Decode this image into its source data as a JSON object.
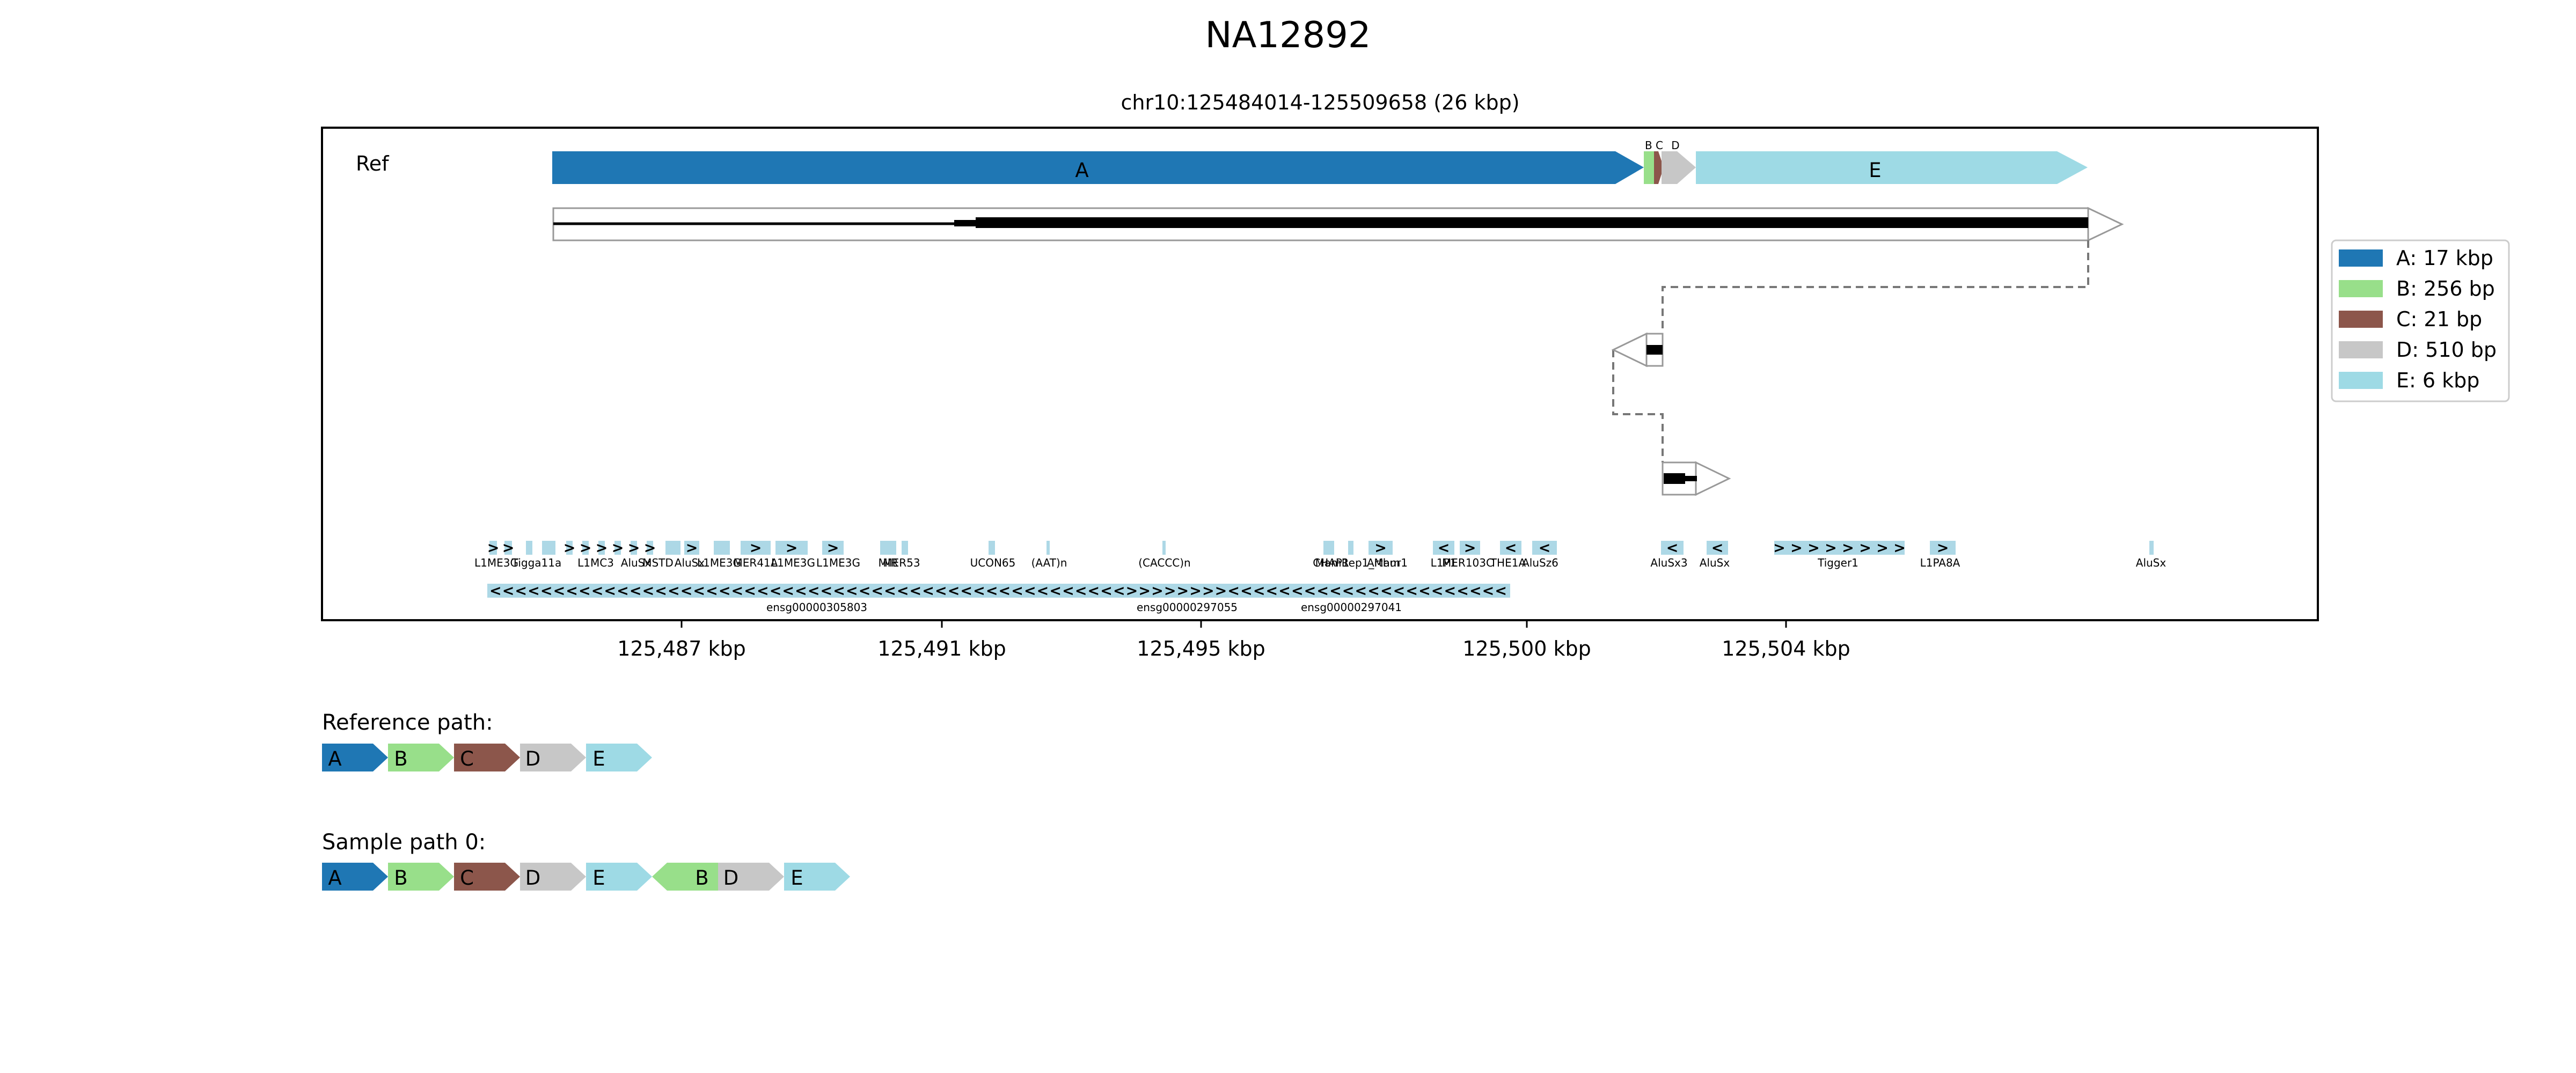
{
  "figure": {
    "title": "NA12892",
    "subtitle": "chr10:125484014-125509658 (26 kbp)",
    "track_label": "Ref"
  },
  "colors": {
    "A": "#1f77b4",
    "B": "#98df8a",
    "C": "#8c564b",
    "D": "#c7c7c7",
    "E": "#9edae5",
    "repeat": "#add8e6",
    "frame": "#000000"
  },
  "blocks": [
    {
      "id": "A",
      "label": "A",
      "legend": "A: 17 kbp"
    },
    {
      "id": "B",
      "label": "B",
      "legend": "B: 256 bp"
    },
    {
      "id": "C",
      "label": "C",
      "legend": "C: 21 bp"
    },
    {
      "id": "D",
      "label": "D",
      "legend": "D: 510 bp"
    },
    {
      "id": "E",
      "label": "E",
      "legend": "E: 6 kbp"
    }
  ],
  "small_labels": {
    "bc": "B C",
    "d": "D"
  },
  "x_ticks": [
    "125,487 kbp",
    "125,491 kbp",
    "125,495 kbp",
    "125,500 kbp",
    "125,504 kbp"
  ],
  "repeats": [
    {
      "name": "L1ME3G"
    },
    {
      "name": "Tigga11a"
    },
    {
      "name": "L1MC3"
    },
    {
      "name": "AluSx"
    },
    {
      "name": "MSTD"
    },
    {
      "name": "AluSx"
    },
    {
      "name": "L1ME3G"
    },
    {
      "name": "MER41A"
    },
    {
      "name": "L1ME3G"
    },
    {
      "name": "L1ME3G"
    },
    {
      "name": "MIR"
    },
    {
      "name": "MER53"
    },
    {
      "name": "UCON65"
    },
    {
      "name": "(AAT)n"
    },
    {
      "name": "(CACCC)n"
    },
    {
      "name": "CHAP1"
    },
    {
      "name": "MamRep1_Mam"
    },
    {
      "name": "Arthur1"
    },
    {
      "name": "L1P1"
    },
    {
      "name": "MER103C"
    },
    {
      "name": "THE1A"
    },
    {
      "name": "AluSz6"
    },
    {
      "name": "AluSx3"
    },
    {
      "name": "AluSx"
    },
    {
      "name": "Tigger1"
    },
    {
      "name": "L1PA8A"
    },
    {
      "name": "AluSx"
    }
  ],
  "genes": [
    {
      "name": "ensg00000305803"
    },
    {
      "name": "ensg00000297055"
    },
    {
      "name": "ensg00000297041"
    }
  ],
  "paths": [
    {
      "title": "Reference path:",
      "segments": [
        {
          "block": "A",
          "label": "A"
        },
        {
          "block": "B",
          "label": "B"
        },
        {
          "block": "C",
          "label": "C"
        },
        {
          "block": "D",
          "label": "D"
        },
        {
          "block": "E",
          "label": "E"
        }
      ]
    },
    {
      "title": "Sample path 0:",
      "segments": [
        {
          "block": "A",
          "label": "A"
        },
        {
          "block": "B",
          "label": "B"
        },
        {
          "block": "C",
          "label": "C"
        },
        {
          "block": "D",
          "label": "D"
        },
        {
          "block": "E",
          "label": "E"
        },
        {
          "block": "B",
          "label": "B",
          "reverse": true
        },
        {
          "block": "D",
          "label": "D"
        },
        {
          "block": "E",
          "label": "E"
        }
      ]
    }
  ]
}
